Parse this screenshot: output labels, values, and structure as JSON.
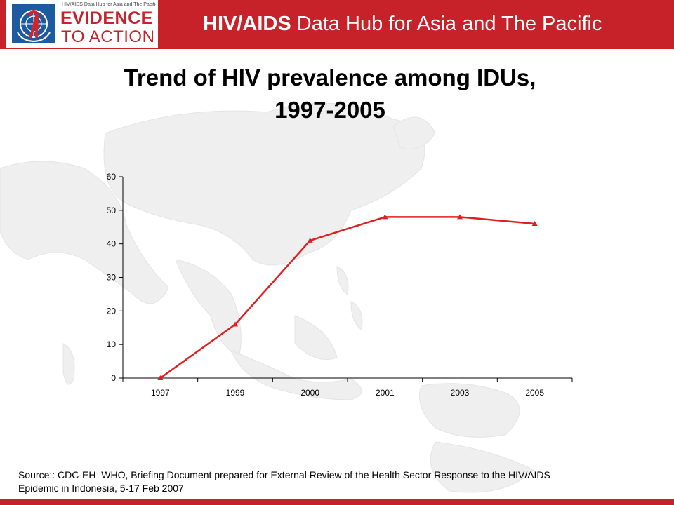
{
  "header": {
    "logo_small_text": "HIV/AIDS Data Hub for Asia and The Pacific",
    "logo_line1": "EVIDENCE",
    "logo_line2": "TO ACTION",
    "title_bold": "HIV/AIDS",
    "title_rest": " Data Hub for Asia and The Pacific"
  },
  "slide": {
    "title_line1": "Trend of HIV prevalence among IDUs,",
    "title_line2": "1997-2005"
  },
  "chart_data": {
    "type": "line",
    "categories": [
      "1997",
      "1999",
      "2000",
      "2001",
      "2003",
      "2005"
    ],
    "values": [
      0,
      16,
      41,
      48,
      48,
      46
    ],
    "yticks": [
      0,
      10,
      20,
      30,
      40,
      50,
      60
    ],
    "ylim": [
      0,
      60
    ],
    "grid": false,
    "legend": "none",
    "line_color": "#e02020"
  },
  "footer": {
    "source_line1": "Source:: CDC-EH_WHO, Briefing Document prepared for External Review of the Health Sector Response to the HIV/AIDS",
    "source_line2": "Epidemic in Indonesia, 5-17 Feb 2007"
  },
  "colors": {
    "brand_red": "#c72229",
    "un_blue": "#1e5aa0"
  }
}
